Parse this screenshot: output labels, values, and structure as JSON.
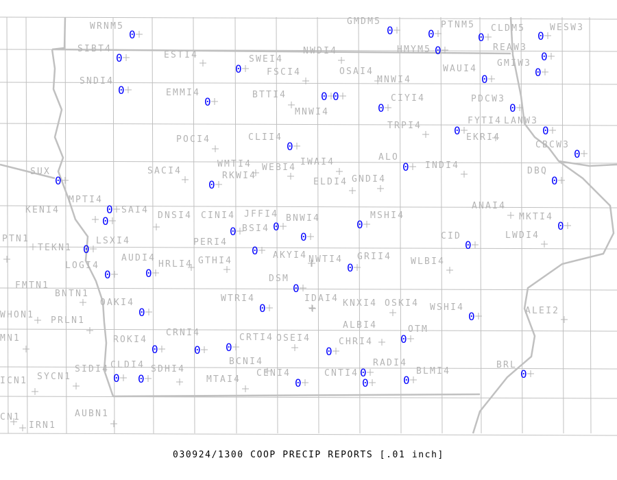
{
  "footer": "030924/1300 COOP PRECIP REPORTS [.01 inch]",
  "colors": {
    "value": "#0000ff",
    "label": "#b4b4b4",
    "boundary": "#c0c0c0"
  },
  "stations": [
    {
      "id": "WRNM5",
      "value": "0"
    },
    {
      "id": "SIBT4",
      "value": "0"
    },
    {
      "id": "ESTI4",
      "value": null
    },
    {
      "id": "SWEI4",
      "value": "0"
    },
    {
      "id": "FSCI4",
      "value": null
    },
    {
      "id": "NWDI4",
      "value": null
    },
    {
      "id": "OSAI4",
      "value": null
    },
    {
      "id": "GMDM5",
      "value": "0"
    },
    {
      "id": "PTNM5",
      "value": "0"
    },
    {
      "id": "HMYM5",
      "value": "0"
    },
    {
      "id": "CLDM5",
      "value": "0"
    },
    {
      "id": "WESW3",
      "value": "0"
    },
    {
      "id": "REAW3",
      "value": "0"
    },
    {
      "id": "GMIW3",
      "value": "0"
    },
    {
      "id": "WAUI4",
      "value": "0"
    },
    {
      "id": "SNDI4",
      "value": "0"
    },
    {
      "id": "EMMI4",
      "value": "0"
    },
    {
      "id": "BTTI4",
      "value": null
    },
    {
      "id": "MNWI4",
      "value": "0"
    },
    {
      "id": "MNWI4",
      "value": "0"
    },
    {
      "id": "CIYI4",
      "value": "0"
    },
    {
      "id": "PDCW3",
      "value": "0"
    },
    {
      "id": "TRPI4",
      "value": null
    },
    {
      "id": "FYTI4",
      "value": "0"
    },
    {
      "id": "EKRI4",
      "value": null
    },
    {
      "id": "LANW3",
      "value": "0"
    },
    {
      "id": "CBCW3",
      "value": "0"
    },
    {
      "id": "POCI4",
      "value": null
    },
    {
      "id": "CLII4",
      "value": "0"
    },
    {
      "id": "SUX",
      "value": "0"
    },
    {
      "id": "SACI4",
      "value": null
    },
    {
      "id": "RKWI4",
      "value": "0"
    },
    {
      "id": "WMTI4",
      "value": null
    },
    {
      "id": "WEBI4",
      "value": null
    },
    {
      "id": "IWAI4",
      "value": null
    },
    {
      "id": "ELDI4",
      "value": null
    },
    {
      "id": "GNDI4",
      "value": null
    },
    {
      "id": "ALO",
      "value": "0"
    },
    {
      "id": "INDI4",
      "value": null
    },
    {
      "id": "DBQ",
      "value": "0"
    },
    {
      "id": "MPTI4",
      "value": "0"
    },
    {
      "id": "KENI4",
      "value": null
    },
    {
      "id": "SAI4",
      "value": "0"
    },
    {
      "id": "DNSI4",
      "value": null
    },
    {
      "id": "CINI4",
      "value": null
    },
    {
      "id": "JFFI4",
      "value": "0"
    },
    {
      "id": "BNWI4",
      "value": "0"
    },
    {
      "id": "BSI4",
      "value": "0"
    },
    {
      "id": "MSHI4",
      "value": "0"
    },
    {
      "id": "PERI4",
      "value": "0"
    },
    {
      "id": "AKYI4",
      "value": null
    },
    {
      "id": "PTN1",
      "value": null
    },
    {
      "id": "TEKN1",
      "value": null
    },
    {
      "id": "LSXI4",
      "value": "0"
    },
    {
      "id": "LOGI4",
      "value": "0"
    },
    {
      "id": "HRLI4",
      "value": "0"
    },
    {
      "id": "AUDI4",
      "value": null
    },
    {
      "id": "GTHI4",
      "value": null
    },
    {
      "id": "NWTI4",
      "value": null
    },
    {
      "id": "GRII4",
      "value": "0"
    },
    {
      "id": "WLBI4",
      "value": null
    },
    {
      "id": "CID",
      "value": "0"
    },
    {
      "id": "ANAI4",
      "value": null
    },
    {
      "id": "MKTI4",
      "value": "0"
    },
    {
      "id": "LWDI4",
      "value": null
    },
    {
      "id": "DSM",
      "value": "0"
    },
    {
      "id": "FMTN1",
      "value": null
    },
    {
      "id": "BNTN1",
      "value": null
    },
    {
      "id": "WHON1",
      "value": null
    },
    {
      "id": "PRLN1",
      "value": null
    },
    {
      "id": "OAKI4",
      "value": "0"
    },
    {
      "id": "WTRI4",
      "value": "0"
    },
    {
      "id": "IDAI4",
      "value": null
    },
    {
      "id": "KNXI4",
      "value": null
    },
    {
      "id": "OSKI4",
      "value": null
    },
    {
      "id": "WSHI4",
      "value": "0"
    },
    {
      "id": "ALEI2",
      "value": null
    },
    {
      "id": "MN1",
      "value": null
    },
    {
      "id": "ROKI4",
      "value": "0"
    },
    {
      "id": "CRNI4",
      "value": "0"
    },
    {
      "id": "CRTI4",
      "value": "0"
    },
    {
      "id": "OSEI4",
      "value": null
    },
    {
      "id": "CHRI4",
      "value": "0"
    },
    {
      "id": "ALBI4",
      "value": null
    },
    {
      "id": "OTM",
      "value": "0"
    },
    {
      "id": "BCNI4",
      "value": null
    },
    {
      "id": "RADI4",
      "value": "0"
    },
    {
      "id": "CNTI4",
      "value": "0"
    },
    {
      "id": "BLMI4",
      "value": "0"
    },
    {
      "id": "BRL",
      "value": "0"
    },
    {
      "id": "SIDI4",
      "value": "0"
    },
    {
      "id": "SDHI4",
      "value": "0"
    },
    {
      "id": "CLDI4",
      "value": null
    },
    {
      "id": "MTAI4",
      "value": null
    },
    {
      "id": "CENI4",
      "value": "0"
    },
    {
      "id": "ICN1",
      "value": null
    },
    {
      "id": "SYCN1",
      "value": null
    },
    {
      "id": "AUBN1",
      "value": null
    },
    {
      "id": "CN1",
      "value": null
    },
    {
      "id": "IRN1",
      "value": null
    }
  ]
}
